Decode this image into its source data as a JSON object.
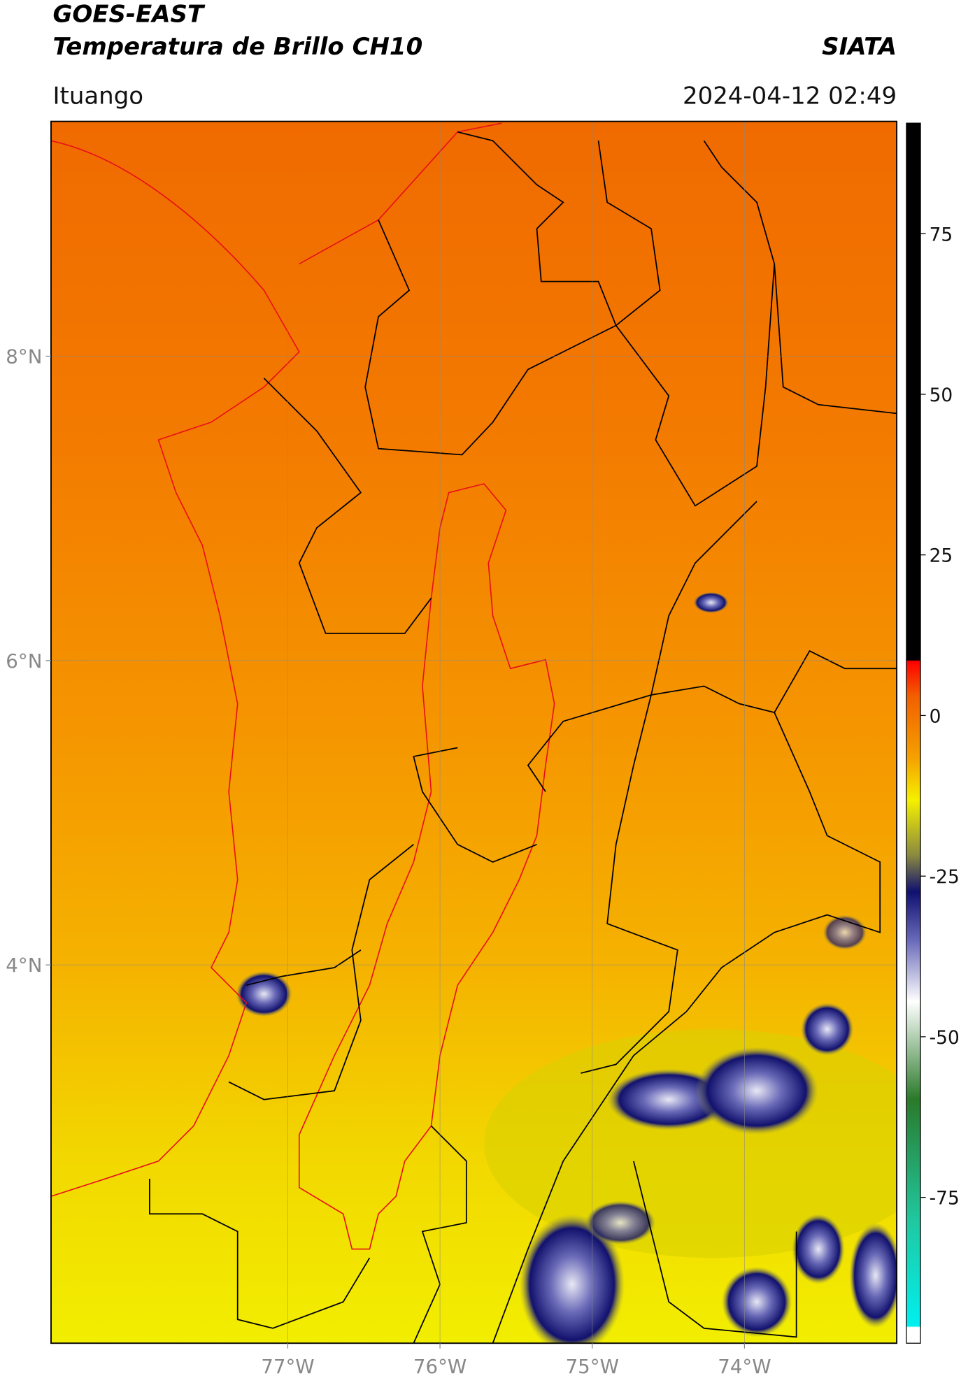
{
  "header": {
    "satellite": "GOES-EAST",
    "product": "Temperatura de Brillo CH10",
    "source": "SIATA",
    "location": "Ituango",
    "datetime": "2024-04-12 02:49"
  },
  "map": {
    "lon_range": [
      -78.555,
      -73.0
    ],
    "lat_range": [
      1.514,
      9.543
    ],
    "lon_ticks": [
      {
        "value": -77,
        "label": "77°W"
      },
      {
        "value": -76,
        "label": "76°W"
      },
      {
        "value": -75,
        "label": "75°W"
      },
      {
        "value": -74,
        "label": "74°W"
      }
    ],
    "lat_ticks": [
      {
        "value": 8,
        "label": "8°N"
      },
      {
        "value": 6,
        "label": "6°N"
      },
      {
        "value": 4,
        "label": "4°N"
      }
    ],
    "grid": true
  },
  "colorbar": {
    "range": [
      -97.7,
      92.2
    ],
    "ticks": [
      75,
      50,
      25,
      0,
      -25,
      -50,
      -75
    ]
  }
}
